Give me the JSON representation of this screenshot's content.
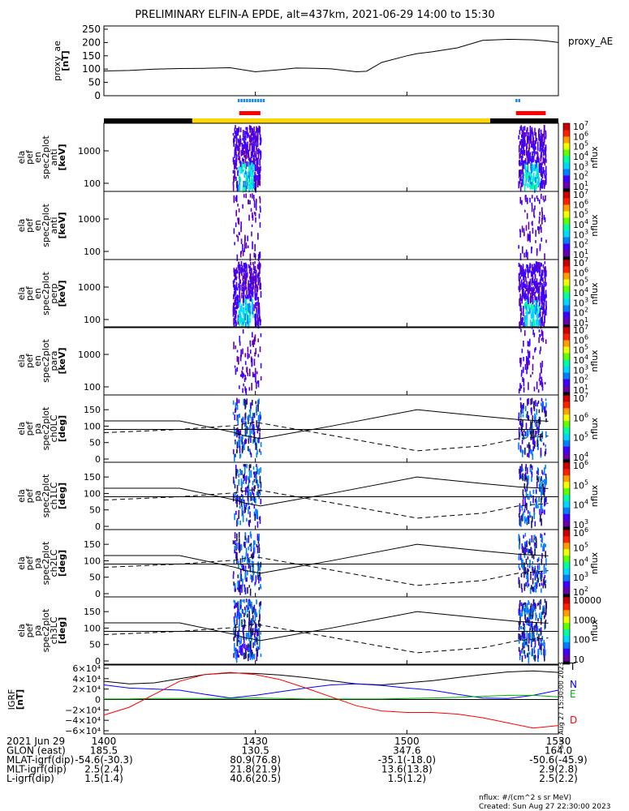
{
  "chart_data": {
    "title": "PRELIMINARY ELFIN-A EPDE, alt=437km, 2021-06-29 14:00 to 15:30",
    "type": "multi-panel",
    "x_range_minutes": [
      0,
      90
    ],
    "x_ticks": [
      "1400",
      "1430",
      "1500",
      "1530"
    ],
    "panels": [
      {
        "id": "ae",
        "ylabel": "proxy_ae\n[nT]",
        "ylabel_lines": [
          "proxy_ae",
          "[nT]"
        ],
        "legend": "proxy_AE",
        "ylim": [
          0,
          250
        ],
        "ytick_values": [
          0,
          50,
          100,
          150,
          200,
          250
        ],
        "ytick_labels": [
          "0",
          "50",
          "100",
          "150",
          "200",
          "250"
        ],
        "type": "line",
        "x": [
          0,
          5,
          10,
          15,
          20,
          25,
          30,
          35,
          38,
          42,
          45,
          50,
          52,
          55,
          60,
          62,
          65,
          70,
          75,
          80,
          85,
          88,
          90
        ],
        "y": [
          93,
          95,
          100,
          102,
          103,
          105,
          90,
          98,
          104,
          103,
          101,
          90,
          92,
          125,
          150,
          158,
          165,
          180,
          208,
          212,
          210,
          205,
          200
        ]
      }
    ],
    "segment_bars": [
      {
        "name": "fgm",
        "color": "#1f87e8",
        "intervals": [
          [
            28,
            31
          ]
        ]
      },
      {
        "name": "epd",
        "color": "#ff0000",
        "intervals": [
          [
            28,
            31
          ]
        ]
      }
    ],
    "spectrogram_panels": [
      {
        "ylabel_lines": [
          "ela",
          "pef",
          "en",
          "spec2plot",
          "anti",
          "[keV]"
        ],
        "yticks": [
          "100",
          "1000"
        ],
        "cbar_labels": [
          "10^1",
          "10^2",
          "10^3",
          "10^4",
          "10^5",
          "10^6",
          "10^7"
        ],
        "cbar_title": "nflux"
      },
      {
        "ylabel_lines": [
          "ela",
          "pef",
          "en",
          "spec2plot",
          "anti",
          "[keV]"
        ],
        "yticks": [
          "100",
          "1000"
        ],
        "cbar_labels": [
          "10^1",
          "10^2",
          "10^3",
          "10^4",
          "10^5",
          "10^6",
          "10^7"
        ],
        "cbar_title": "nflux"
      },
      {
        "ylabel_lines": [
          "ela",
          "pef",
          "en",
          "spec2plot",
          "perp",
          "[keV]"
        ],
        "yticks": [
          "100",
          "1000"
        ],
        "cbar_labels": [
          "10^1",
          "10^2",
          "10^3",
          "10^4",
          "10^5",
          "10^6",
          "10^7"
        ],
        "cbar_title": "nflux"
      },
      {
        "ylabel_lines": [
          "ela",
          "pef",
          "en",
          "spec2plot",
          "para",
          "[keV]"
        ],
        "yticks": [
          "100",
          "1000"
        ],
        "cbar_labels": [
          "10^1",
          "10^2",
          "10^3",
          "10^4",
          "10^5",
          "10^6",
          "10^7"
        ],
        "cbar_title": "nflux"
      }
    ],
    "pitch_panels": [
      {
        "ylabel_lines": [
          "ela",
          "pef",
          "pa",
          "spec2plot",
          "ch0LC",
          "[deg]"
        ],
        "yticks": [
          "0",
          "50",
          "100",
          "150"
        ],
        "cbar_labels": [
          "10^4",
          "10^5",
          "10^6",
          "10^7"
        ],
        "cbar_title": "nflux"
      },
      {
        "ylabel_lines": [
          "ela",
          "pef",
          "pa",
          "spec2plot",
          "ch1LC",
          "[deg]"
        ],
        "yticks": [
          "0",
          "50",
          "100",
          "150"
        ],
        "cbar_labels": [
          "10^3",
          "10^4",
          "10^5",
          "10^6"
        ],
        "cbar_title": "nflux"
      },
      {
        "ylabel_lines": [
          "ela",
          "pef",
          "pa",
          "spec2plot",
          "ch2LC",
          "[deg]"
        ],
        "yticks": [
          "0",
          "50",
          "100",
          "150"
        ],
        "cbar_labels": [
          "10^2",
          "10^3",
          "10^4",
          "10^5",
          "10^6"
        ],
        "cbar_title": "nflux"
      },
      {
        "ylabel_lines": [
          "ela",
          "pef",
          "pa",
          "spec2plot",
          "ch3LC",
          "[deg]"
        ],
        "yticks": [
          "0",
          "50",
          "100",
          "150"
        ],
        "cbar_labels": [
          "10",
          "100",
          "1000",
          "10000"
        ],
        "cbar_title": "nflux"
      }
    ],
    "pitch_lines": {
      "solid_x": [
        0,
        15,
        26,
        28,
        29,
        31,
        45,
        62,
        75,
        82,
        88
      ],
      "solid_y": [
        116,
        116,
        80,
        70,
        68,
        62,
        100,
        150,
        130,
        120,
        115
      ],
      "dashed_x": [
        0,
        15,
        26,
        28,
        30,
        45,
        62,
        75,
        82,
        88
      ],
      "dashed_y": [
        80,
        90,
        102,
        108,
        112,
        72,
        25,
        40,
        62,
        70
      ],
      "hline": 90
    },
    "igrf_panel": {
      "ylabel_lines": [
        "IGRF",
        "[nT]"
      ],
      "ylim": [
        -60000,
        60000
      ],
      "ytick_labels": [
        "6×10⁴",
        "4×10⁴",
        "2×10⁴",
        "0",
        "−2×10⁴",
        "−4×10⁴",
        "−6×10⁴"
      ],
      "ytick_values": [
        60000,
        40000,
        20000,
        0,
        -20000,
        -40000,
        -60000
      ],
      "series": [
        {
          "name": "T",
          "color": "#000000",
          "x": [
            0,
            5,
            10,
            15,
            20,
            25,
            30,
            35,
            40,
            45,
            50,
            55,
            60,
            65,
            70,
            75,
            80,
            85,
            90
          ],
          "y": [
            35000,
            30000,
            32000,
            40000,
            48000,
            51000,
            50000,
            47000,
            42000,
            36000,
            30000,
            28000,
            32000,
            36000,
            42000,
            48000,
            53000,
            55000,
            52000
          ]
        },
        {
          "name": "N",
          "color": "#0000ff",
          "x": [
            0,
            5,
            10,
            15,
            20,
            25,
            30,
            35,
            40,
            45,
            50,
            55,
            60,
            65,
            70,
            75,
            80,
            85,
            90
          ],
          "y": [
            28000,
            22000,
            20000,
            18000,
            10000,
            3000,
            8000,
            15000,
            22000,
            28000,
            30000,
            27000,
            22000,
            18000,
            10000,
            3000,
            2000,
            8000,
            18000
          ]
        },
        {
          "name": "E",
          "color": "#00b000",
          "x": [
            0,
            5,
            10,
            15,
            20,
            25,
            30,
            35,
            40,
            45,
            50,
            55,
            60,
            65,
            70,
            75,
            80,
            85,
            90
          ],
          "y": [
            1000,
            1000,
            2000,
            2000,
            2000,
            2000,
            3000,
            2000,
            1000,
            1000,
            1000,
            1000,
            2000,
            3000,
            4000,
            6000,
            8000,
            8000,
            5000
          ]
        },
        {
          "name": "D",
          "color": "#ff0000",
          "x": [
            0,
            5,
            10,
            15,
            20,
            25,
            30,
            35,
            40,
            45,
            50,
            55,
            60,
            65,
            70,
            75,
            80,
            85,
            90
          ],
          "y": [
            -30000,
            -15000,
            10000,
            35000,
            48000,
            52000,
            48000,
            38000,
            22000,
            5000,
            -12000,
            -22000,
            -25000,
            -25000,
            -28000,
            -35000,
            -45000,
            -55000,
            -50000
          ]
        }
      ],
      "side_note": "Sun Aug 27 15:30:00 2023"
    },
    "footer_rows": [
      {
        "label": "2021 Jun 29",
        "values": [
          "1400",
          "1430",
          "1500",
          "1530"
        ]
      },
      {
        "label": "GLON (east)",
        "values": [
          "185.5",
          "130.5",
          "347.6",
          "164.0"
        ]
      },
      {
        "label": "MLAT-igrf(dip)",
        "values": [
          "-54.6(-30.3)",
          "80.9(76.8)",
          "-35.1(-18.0)",
          "-50.6(-45.9)"
        ]
      },
      {
        "label": "MLT-igrf(dip)",
        "values": [
          "2.5(2.4)",
          "21.8(21.9)",
          "13.6(13.8)",
          "2.9(2.8)"
        ]
      },
      {
        "label": "L-igrf(dip)",
        "values": [
          "1.5(1.4)",
          "40.6(20.5)",
          "1.5(1.2)",
          "2.5(2.2)"
        ]
      }
    ],
    "footnote_units": "nflux: #/(cm^2 s sr MeV)",
    "footnote_created": "Created: Sun Aug 27 22:30:00 2023"
  }
}
